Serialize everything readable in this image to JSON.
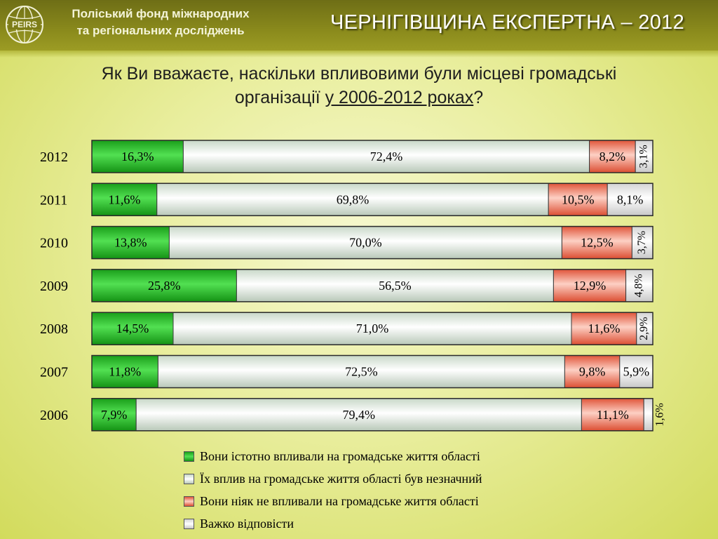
{
  "header": {
    "org_name_line1": "Поліський фонд міжнародних",
    "org_name_line2": "та регіональних досліджень",
    "logo_text": "PEIRS",
    "title": "ЧЕРНІГІВЩИНА ЕКСПЕРТНА – 2012"
  },
  "question": {
    "line1": "Як Ви вважаєте, наскільки впливовими були місцеві громадські",
    "line2_prefix": "організації ",
    "line2_underlined": "у 2006-2012 роках",
    "line2_suffix": "?"
  },
  "colors": {
    "significant": "#2fc62f",
    "insignificant": "#ffffff",
    "no_influence": "#f28e76",
    "hard_to_say": "#f0f0f0"
  },
  "chart_data": {
    "type": "bar",
    "orientation": "horizontal",
    "stacked": true,
    "percent_stacked": true,
    "categories": [
      "2012",
      "2011",
      "2010",
      "2009",
      "2008",
      "2007",
      "2006"
    ],
    "series": [
      {
        "name": "Вони істотно впливали на громадське життя області",
        "values": [
          16.3,
          11.6,
          13.8,
          25.8,
          14.5,
          11.8,
          7.9
        ],
        "labels": [
          "16,3%",
          "11,6%",
          "13,8%",
          "25,8%",
          "14,5%",
          "11,8%",
          "7,9%"
        ]
      },
      {
        "name": "Їх вплив на громадське життя області був незначний",
        "values": [
          72.4,
          69.8,
          70.0,
          56.5,
          71.0,
          72.5,
          79.4
        ],
        "labels": [
          "72,4%",
          "69,8%",
          "70,0%",
          "56,5%",
          "71,0%",
          "72,5%",
          "79,4%"
        ]
      },
      {
        "name": "Вони ніяк не впливали на громадське життя області",
        "values": [
          8.2,
          10.5,
          12.5,
          12.9,
          11.6,
          9.8,
          11.1
        ],
        "labels": [
          "8,2%",
          "10,5%",
          "12,5%",
          "12,9%",
          "11,6%",
          "9,8%",
          "11,1%"
        ]
      },
      {
        "name": "Важко відповісти",
        "values": [
          3.1,
          8.1,
          3.7,
          4.8,
          2.9,
          5.9,
          1.6
        ],
        "labels": [
          "3,1%",
          "8,1%",
          "3,7%",
          "4,8%",
          "2,9%",
          "5,9%",
          "1,6%"
        ]
      }
    ],
    "legend_position": "bottom"
  }
}
